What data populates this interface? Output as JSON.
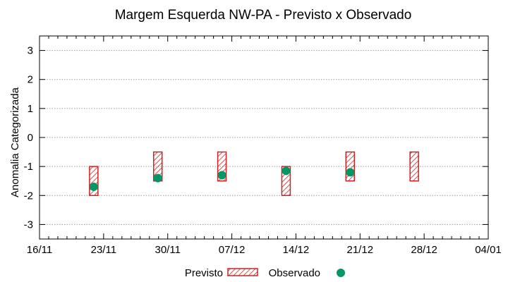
{
  "chart_data": {
    "type": "range-bar-scatter",
    "title": "Margem Esquerda NW-PA - Previsto x Observado",
    "xlabel": "",
    "ylabel": "Anomalia Categorizada",
    "x_ticks": [
      "16/11",
      "23/11",
      "30/11",
      "07/12",
      "14/12",
      "21/12",
      "28/12",
      "04/01"
    ],
    "y_ticks": [
      3,
      2,
      1,
      0,
      -1,
      -2,
      -3
    ],
    "ylim": [
      -3.5,
      3.5
    ],
    "grid": true,
    "colors": {
      "previsto": "#cc2222",
      "observado": "#009966",
      "grid": "#9a9a9a"
    },
    "previsto": [
      {
        "x": "23/11",
        "low": -2,
        "high": -1
      },
      {
        "x": "30/11",
        "low": -1.5,
        "high": -0.5
      },
      {
        "x": "07/12",
        "low": -1.5,
        "high": -0.5
      },
      {
        "x": "14/12",
        "low": -2,
        "high": -1
      },
      {
        "x": "21/12",
        "low": -1.5,
        "high": -0.5
      },
      {
        "x": "28/12",
        "low": -1.5,
        "high": -0.5
      }
    ],
    "observado": [
      {
        "x": "23/11",
        "value": -1.7
      },
      {
        "x": "30/11",
        "value": -1.4
      },
      {
        "x": "07/12",
        "value": -1.3
      },
      {
        "x": "14/12",
        "value": -1.15
      },
      {
        "x": "21/12",
        "value": -1.2
      }
    ],
    "legend": {
      "position": "bottom-center",
      "items": [
        "Previsto",
        "Observado"
      ]
    }
  }
}
